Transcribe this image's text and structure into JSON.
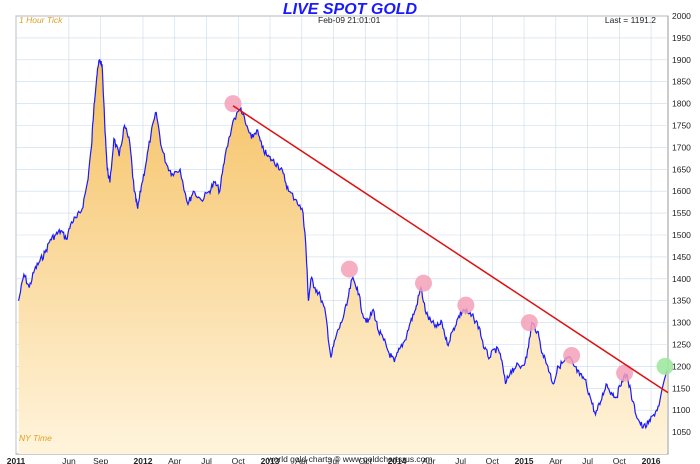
{
  "header": {
    "title": "LIVE SPOT GOLD",
    "timestamp": "Feb-09  21:01:01",
    "last": "Last = 1191.2",
    "tick_label": "1 Hour Tick",
    "timezone_label": "NY Time"
  },
  "footer": {
    "text": "world gold charts © www.goldchartsrus.com"
  },
  "colors": {
    "price_line": "#1a1aff",
    "fill_top": "#f5c060",
    "fill_bottom": "#fff4dc",
    "trendline": "#dd1111",
    "touch_marker": "#f4a0b8",
    "breakout_marker": "#a0e8a0",
    "grid": "#c9dbe8",
    "label_gold": "#e0a020"
  },
  "chart_data": {
    "type": "area",
    "title": "LIVE SPOT GOLD",
    "xlabel": "",
    "ylabel": "",
    "ylim": [
      1000,
      2000
    ],
    "grid": true,
    "x_tick_labels": [
      "2011",
      "Jun",
      "Sep",
      "2012",
      "Apr",
      "Jul",
      "Oct",
      "2013",
      "Apr",
      "Jul",
      "Oct",
      "2014",
      "Apr",
      "Jul",
      "Oct",
      "2015",
      "Apr",
      "Jul",
      "Oct",
      "2016"
    ],
    "year_ticks": [
      "2011",
      "2012",
      "2013",
      "2014",
      "2015",
      "2016"
    ],
    "y_ticks": [
      1050,
      1100,
      1150,
      1200,
      1250,
      1300,
      1350,
      1400,
      1450,
      1500,
      1550,
      1600,
      1650,
      1700,
      1750,
      1800,
      1850,
      1900,
      1950,
      2000
    ],
    "series": [
      {
        "x": [
          "2011-01",
          "2011-01",
          "2011-02",
          "2011-02",
          "2011-03",
          "2011-03",
          "2011-04",
          "2011-04",
          "2011-05",
          "2011-05",
          "2011-06",
          "2011-06",
          "2011-07",
          "2011-07",
          "2011-08",
          "2011-08",
          "2011-08",
          "2011-08",
          "2011-09",
          "2011-09",
          "2011-09",
          "2011-09",
          "2011-10",
          "2011-10",
          "2011-11",
          "2011-11",
          "2011-12",
          "2011-12",
          "2011-12",
          "2012-01",
          "2012-01",
          "2012-02",
          "2012-02",
          "2012-03",
          "2012-03",
          "2012-04",
          "2012-05",
          "2012-05",
          "2012-06",
          "2012-07",
          "2012-07",
          "2012-08",
          "2012-08",
          "2012-09",
          "2012-10",
          "2012-10",
          "2012-11",
          "2012-11",
          "2012-12",
          "2012-12",
          "2013-01",
          "2013-01",
          "2013-02",
          "2013-02",
          "2013-03",
          "2013-04",
          "2013-04",
          "2013-04",
          "2013-04",
          "2013-05",
          "2013-05",
          "2013-06",
          "2013-06",
          "2013-07",
          "2013-07",
          "2013-08",
          "2013-08",
          "2013-09",
          "2013-09",
          "2013-10",
          "2013-10",
          "2013-11",
          "2013-11",
          "2013-12",
          "2013-12",
          "2014-01",
          "2014-01",
          "2014-02",
          "2014-02",
          "2014-03",
          "2014-03",
          "2014-04",
          "2014-04",
          "2014-05",
          "2014-05",
          "2014-06",
          "2014-06",
          "2014-07",
          "2014-07",
          "2014-08",
          "2014-08",
          "2014-09",
          "2014-09",
          "2014-10",
          "2014-10",
          "2014-11",
          "2014-11",
          "2014-12",
          "2014-12",
          "2015-01",
          "2015-01",
          "2015-02",
          "2015-02",
          "2015-03",
          "2015-03",
          "2015-04",
          "2015-04",
          "2015-05",
          "2015-05",
          "2015-06",
          "2015-06",
          "2015-07",
          "2015-07",
          "2015-08",
          "2015-08",
          "2015-09",
          "2015-09",
          "2015-10",
          "2015-10",
          "2015-11",
          "2015-11",
          "2015-12",
          "2015-12",
          "2016-01",
          "2016-01",
          "2016-02"
        ],
        "values": [
          1350,
          1410,
          1380,
          1420,
          1440,
          1460,
          1490,
          1500,
          1510,
          1490,
          1530,
          1540,
          1560,
          1620,
          1700,
          1800,
          1860,
          1900,
          1890,
          1760,
          1650,
          1620,
          1720,
          1680,
          1750,
          1710,
          1600,
          1560,
          1610,
          1660,
          1730,
          1780,
          1700,
          1660,
          1640,
          1650,
          1570,
          1600,
          1580,
          1600,
          1620,
          1600,
          1680,
          1760,
          1790,
          1750,
          1720,
          1740,
          1700,
          1680,
          1670,
          1660,
          1640,
          1600,
          1580,
          1550,
          1480,
          1350,
          1400,
          1380,
          1360,
          1320,
          1220,
          1270,
          1300,
          1340,
          1400,
          1380,
          1320,
          1300,
          1330,
          1280,
          1260,
          1230,
          1210,
          1240,
          1260,
          1300,
          1330,
          1380,
          1320,
          1300,
          1290,
          1300,
          1250,
          1280,
          1310,
          1330,
          1320,
          1310,
          1290,
          1240,
          1220,
          1240,
          1230,
          1160,
          1190,
          1200,
          1200,
          1220,
          1300,
          1280,
          1230,
          1200,
          1160,
          1200,
          1210,
          1220,
          1200,
          1180,
          1170,
          1130,
          1090,
          1120,
          1160,
          1140,
          1130,
          1170,
          1180,
          1120,
          1080,
          1060,
          1070,
          1090,
          1110,
          1191.2
        ]
      }
    ],
    "trendline": {
      "start": [
        "2012-09",
        1795
      ],
      "end": [
        "2016-02",
        1140
      ]
    },
    "touch_points": [
      {
        "x": "2012-09",
        "y": 1800
      },
      {
        "x": "2013-08",
        "y": 1422
      },
      {
        "x": "2014-03",
        "y": 1390
      },
      {
        "x": "2014-07",
        "y": 1340
      },
      {
        "x": "2015-01",
        "y": 1300
      },
      {
        "x": "2015-05",
        "y": 1225
      },
      {
        "x": "2015-10",
        "y": 1185
      }
    ],
    "breakout_point": {
      "x": "2016-02",
      "y": 1200
    }
  }
}
